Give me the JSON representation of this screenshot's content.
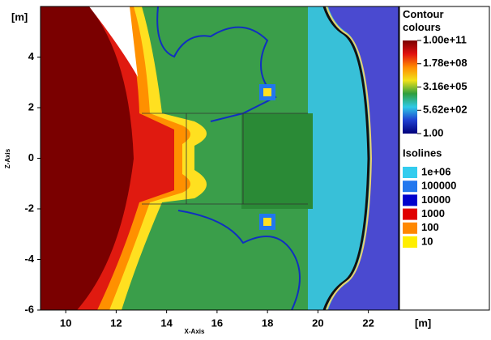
{
  "chart_data": {
    "type": "contour",
    "x_label": "X-Axis",
    "y_label": "Z-Axis",
    "x_unit": "[m]",
    "y_unit": "[m]",
    "xlim": [
      9,
      23.2
    ],
    "ylim": [
      -6,
      6
    ],
    "xticks": [
      10,
      12,
      14,
      16,
      18,
      20,
      22
    ],
    "yticks": [
      -6,
      -4,
      -2,
      0,
      2,
      4
    ],
    "colorbar": {
      "title": "Contour colours",
      "log": true,
      "clim": [
        1,
        100000000000
      ],
      "colors": [
        "#00007a",
        "#1f3fd0",
        "#2ec9e6",
        "#2f9e3e",
        "#f2e21a",
        "#ff8a00",
        "#e01010",
        "#7a0000"
      ],
      "ticks": [
        {
          "value": 100000000000,
          "label": "1.00e+11"
        },
        {
          "value": 178000000,
          "label": "1.78e+08"
        },
        {
          "value": 316000,
          "label": "3.16e+05"
        },
        {
          "value": 562,
          "label": "5.62e+02"
        },
        {
          "value": 1,
          "label": "1.00"
        }
      ]
    },
    "isolines": {
      "title": "Isolines",
      "levels": [
        {
          "value": 1000000,
          "label": "1e+06",
          "color": "#33ccee"
        },
        {
          "value": 100000,
          "label": "100000",
          "color": "#2277ee"
        },
        {
          "value": 10000,
          "label": "10000",
          "color": "#0000cc"
        },
        {
          "value": 1000,
          "label": "1000",
          "color": "#e00000"
        },
        {
          "value": 100,
          "label": "100",
          "color": "#ff8800"
        },
        {
          "value": 10,
          "label": "10",
          "color": "#ffee00"
        }
      ]
    }
  }
}
